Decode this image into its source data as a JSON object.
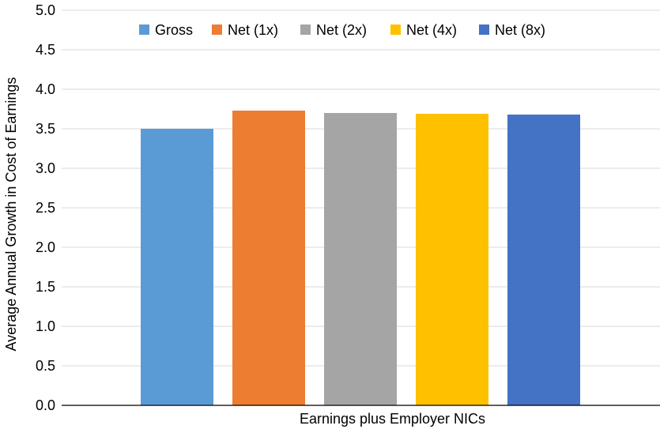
{
  "chart_data": {
    "type": "bar",
    "categories": [
      "Earnings plus Employer NICs"
    ],
    "series": [
      {
        "name": "Gross",
        "color": "#5B9BD5",
        "values": [
          3.5
        ]
      },
      {
        "name": "Net (1x)",
        "color": "#ED7D31",
        "values": [
          3.73
        ]
      },
      {
        "name": "Net (2x)",
        "color": "#A5A5A5",
        "values": [
          3.7
        ]
      },
      {
        "name": "Net (4x)",
        "color": "#FFC000",
        "values": [
          3.69
        ]
      },
      {
        "name": "Net (8x)",
        "color": "#4472C4",
        "values": [
          3.68
        ]
      }
    ],
    "ylabel": "Average Annual Growth in Cost of Earnings",
    "xlabel": "",
    "ylim": [
      0,
      5.0
    ],
    "yticks": [
      "0.0",
      "0.5",
      "1.0",
      "1.5",
      "2.0",
      "2.5",
      "3.0",
      "3.5",
      "4.0",
      "4.5",
      "5.0"
    ],
    "grid": "horizontal",
    "legend_position": "top"
  }
}
